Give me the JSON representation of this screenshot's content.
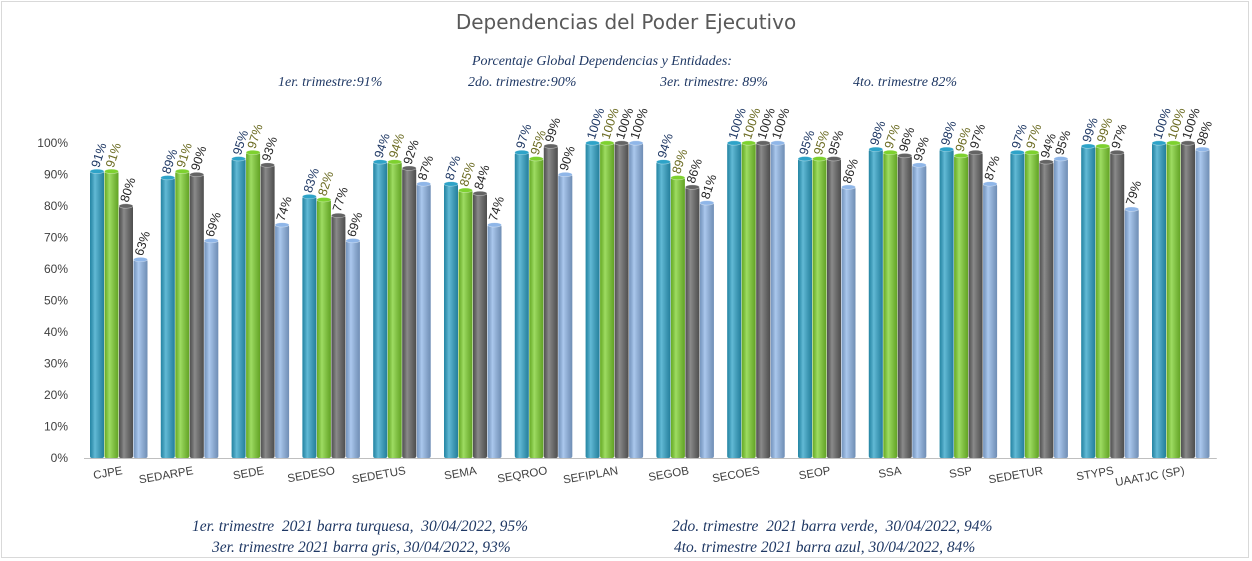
{
  "chart_data": {
    "type": "bar",
    "title": "Dependencias del Poder Ejecutivo",
    "subtitle": {
      "heading": "Porcentaje Global  Dependencias y Entidades:",
      "q1": "1er. trimestre:91%",
      "q2": "2do. trimestre:90%",
      "q3": "3er. trimestre: 89%",
      "q4": "4to. trimestre 82%"
    },
    "categories": [
      "CJPE",
      "SEDARPE",
      "SEDE",
      "SEDESO",
      "SEDETUS",
      "SEMA",
      "SEQROO",
      "SEFIPLAN",
      "SEGOB",
      "SECOES",
      "SEOP",
      "SSA",
      "SSP",
      "SEDETUR",
      "STYPS",
      "UAATJC (SP)"
    ],
    "series": [
      {
        "values": [
          91,
          89,
          95,
          83,
          94,
          87,
          97,
          100,
          94,
          100,
          95,
          98,
          98,
          97,
          99,
          100
        ],
        "color": "#2ea3c8",
        "label_color": "#1f3864"
      },
      {
        "values": [
          91,
          91,
          97,
          82,
          94,
          85,
          95,
          100,
          89,
          100,
          95,
          97,
          96,
          97,
          99,
          100
        ],
        "color": "#7ed12f",
        "label_color": "#6b6b22"
      },
      {
        "values": [
          80,
          90,
          93,
          77,
          92,
          84,
          99,
          100,
          86,
          100,
          95,
          96,
          97,
          94,
          97,
          100
        ],
        "color": "#646464",
        "label_color": "#262626"
      },
      {
        "values": [
          63,
          69,
          74,
          69,
          87,
          74,
          90,
          100,
          81,
          100,
          86,
          93,
          87,
          95,
          79,
          98
        ],
        "color": "#8fb6e8",
        "label_color": "#262626"
      }
    ],
    "y_ticks": [
      "0%",
      "10%",
      "20%",
      "30%",
      "40%",
      "50%",
      "60%",
      "70%",
      "80%",
      "90%",
      "100%"
    ],
    "ylim": [
      0,
      100
    ],
    "grid": false,
    "legend_notes": {
      "line1_left": "1er. trimestre  2021 barra turquesa,  30/04/2022, 95%",
      "line1_right": "2do. trimestre  2021 barra verde,  30/04/2022, 94%",
      "line2_left": "3er. trimestre 2021 barra gris, 30/04/2022, 93%",
      "line2_right": "4to. trimestre 2021 barra azul, 30/04/2022, 84%"
    }
  }
}
